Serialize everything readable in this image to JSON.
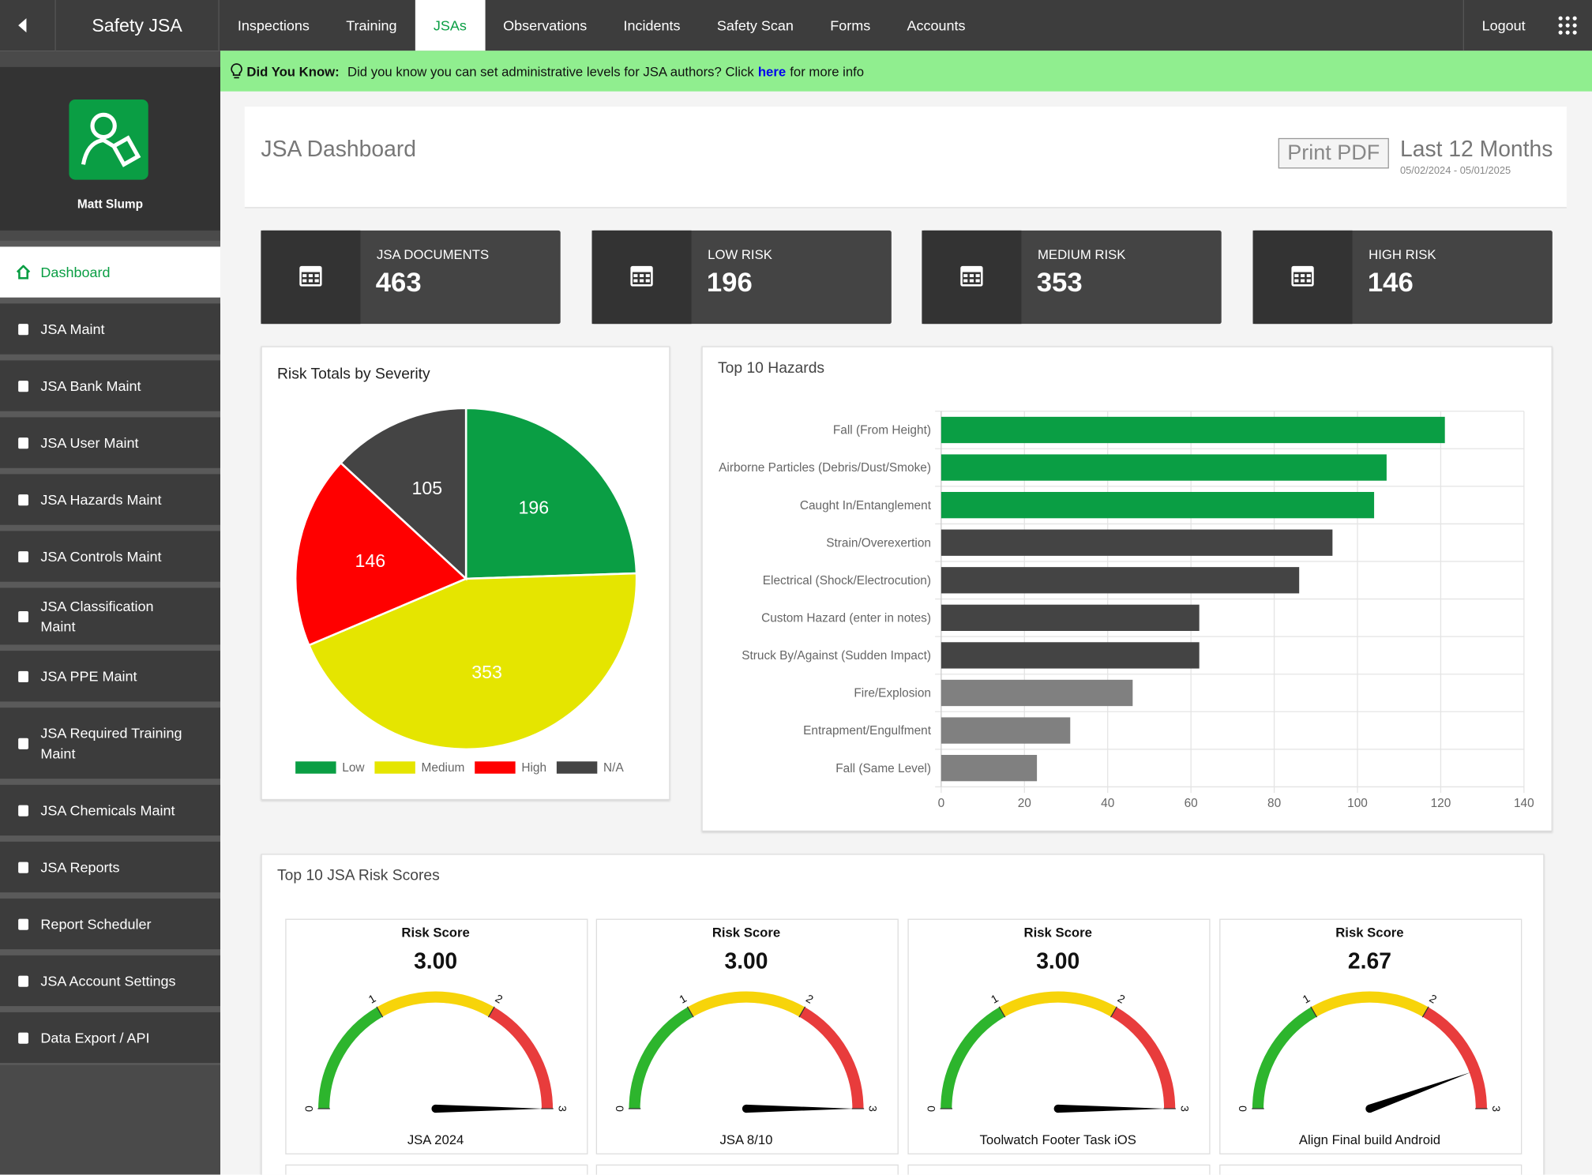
{
  "nav": {
    "brand": "Safety JSA",
    "tabs": [
      "Inspections",
      "Training",
      "JSAs",
      "Observations",
      "Incidents",
      "Safety Scan",
      "Forms",
      "Accounts"
    ],
    "active_tab": 2,
    "logout": "Logout"
  },
  "banner": {
    "label": "Did You Know:",
    "text": "Did you know you can set administrative levels for JSA authors? Click",
    "link": "here",
    "after": "for more info"
  },
  "user": {
    "name": "Matt Slump"
  },
  "sidebar": {
    "items": [
      "Dashboard",
      "JSA Maint",
      "JSA Bank Maint",
      "JSA User Maint",
      "JSA Hazards Maint",
      "JSA Controls Maint",
      "JSA Classification Maint",
      "JSA PPE Maint",
      "JSA Required Training Maint",
      "JSA Chemicals Maint",
      "JSA Reports",
      "Report Scheduler",
      "JSA Account Settings",
      "Data Export / API"
    ],
    "active": 0
  },
  "header": {
    "title": "JSA Dashboard",
    "print": "Print PDF",
    "range": "Last 12 Months",
    "dates": "05/02/2024 - 05/01/2025"
  },
  "cards": [
    {
      "label": "JSA DOCUMENTS",
      "value": 463
    },
    {
      "label": "LOW RISK",
      "value": 196
    },
    {
      "label": "MEDIUM RISK",
      "value": 353
    },
    {
      "label": "HIGH RISK",
      "value": 146
    }
  ],
  "pie": {
    "type": "pie",
    "title": "Risk Totals by Severity",
    "categories": [
      "Low",
      "Medium",
      "High",
      "N/A"
    ],
    "values": [
      196,
      353,
      146,
      105
    ],
    "colors": [
      "#0a9e44",
      "#e5e500",
      "#ff0000",
      "#444444"
    ]
  },
  "bar": {
    "type": "bar",
    "orientation": "horizontal",
    "title": "Top 10 Hazards",
    "categories": [
      "Fall (From Height)",
      "Airborne Particles (Debris/Dust/Smoke)",
      "Caught In/Entanglement",
      "Strain/Overexertion",
      "Electrical (Shock/Electrocution)",
      "Custom Hazard (enter in notes)",
      "Struck By/Against (Sudden Impact)",
      "Fire/Explosion",
      "Entrapment/Engulfment",
      "Fall (Same Level)"
    ],
    "values": [
      121,
      107,
      104,
      94,
      86,
      62,
      62,
      46,
      31,
      23
    ],
    "colors": [
      "#0a9e44",
      "#0a9e44",
      "#0a9e44",
      "#444444",
      "#444444",
      "#444444",
      "#444444",
      "#808080",
      "#808080",
      "#808080"
    ],
    "xlim": [
      0,
      140
    ],
    "xticks": [
      0,
      20,
      40,
      60,
      80,
      100,
      120,
      140
    ],
    "grid": true
  },
  "gauges": {
    "type": "gauge",
    "title": "Top 10 JSA Risk Scores",
    "range": [
      0,
      3
    ],
    "ticks": [
      0,
      1,
      2,
      3
    ],
    "band_colors": [
      "#2db52d",
      "#f7d40a",
      "#e83c3c"
    ],
    "items": [
      {
        "label": "Risk Score",
        "value": 3,
        "value_label": "3.00",
        "name": "JSA 2024"
      },
      {
        "label": "Risk Score",
        "value": 3,
        "value_label": "3.00",
        "name": "JSA 8/10"
      },
      {
        "label": "Risk Score",
        "value": 3,
        "value_label": "3.00",
        "name": "Toolwatch Footer Task iOS"
      },
      {
        "label": "Risk Score",
        "value": 2.67,
        "value_label": "2.67",
        "name": "Align Final build Android"
      }
    ]
  }
}
